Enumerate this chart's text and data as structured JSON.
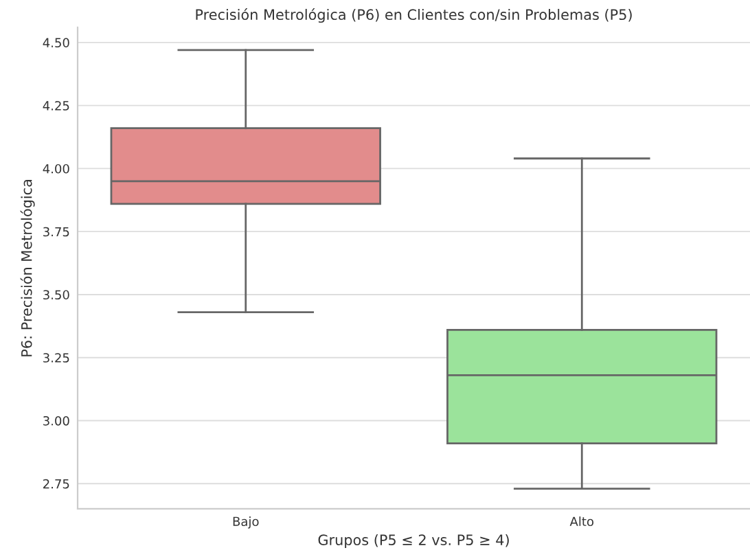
{
  "chart_data": {
    "type": "box",
    "title": "Precisión Metrológica (P6) en Clientes con/sin Problemas (P5)",
    "xlabel": "Grupos (P5 ≤ 2 vs. P5 ≥ 4)",
    "ylabel": "P6: Precisión Metrológica",
    "categories": [
      "Bajo",
      "Alto"
    ],
    "colors": [
      "#e28c8c",
      "#9be39b"
    ],
    "boxes": [
      {
        "low": 3.43,
        "q1": 3.86,
        "median": 3.95,
        "q3": 4.16,
        "high": 4.47
      },
      {
        "low": 2.73,
        "q1": 2.91,
        "median": 3.18,
        "q3": 3.36,
        "high": 4.04
      }
    ],
    "ylim": [
      2.65,
      4.56
    ],
    "yticks": [
      {
        "value": 2.75,
        "label": "2.75"
      },
      {
        "value": 3.0,
        "label": "3.00"
      },
      {
        "value": 3.25,
        "label": "3.25"
      },
      {
        "value": 3.5,
        "label": "3.50"
      },
      {
        "value": 3.75,
        "label": "3.75"
      },
      {
        "value": 4.0,
        "label": "4.00"
      },
      {
        "value": 4.25,
        "label": "4.25"
      },
      {
        "value": 4.5,
        "label": "4.50"
      }
    ],
    "grid": "y"
  }
}
